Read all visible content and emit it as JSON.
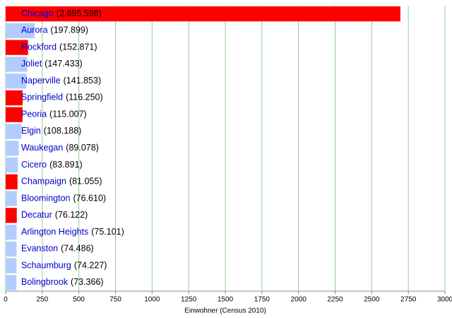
{
  "chart_data": {
    "type": "bar",
    "orientation": "horizontal",
    "categories": [
      "Chicago",
      "Aurora",
      "Rockford",
      "Joliet",
      "Naperville",
      "Springfield",
      "Peoria",
      "Elgin",
      "Waukegan",
      "Cicero",
      "Champaign",
      "Bloomington",
      "Decatur",
      "Arlington Heights",
      "Evanston",
      "Schaumburg",
      "Bolingbrook"
    ],
    "values": [
      2695.598,
      197.899,
      152.871,
      147.433,
      141.853,
      116.25,
      115.007,
      108.188,
      89.078,
      83.891,
      81.055,
      76.61,
      76.122,
      75.101,
      74.486,
      74.227,
      73.366
    ],
    "value_labels": [
      "(2.695.598)",
      "(197.899)",
      "(152.871)",
      "(147.433)",
      "(141.853)",
      "(116.250)",
      "(115.007)",
      "(108.188)",
      "(89.078)",
      "(83.891)",
      "(81.055)",
      "(76.610)",
      "(76.122)",
      "(75.101)",
      "(74.486)",
      "(74.227)",
      "(73.366)"
    ],
    "colors": [
      "#ff0000",
      "#b3ccff",
      "#ff0000",
      "#b3ccff",
      "#b3ccff",
      "#ff0000",
      "#ff0000",
      "#b3ccff",
      "#b3ccff",
      "#b3ccff",
      "#ff0000",
      "#b3ccff",
      "#ff0000",
      "#b3ccff",
      "#b3ccff",
      "#b3ccff",
      "#b3ccff"
    ],
    "x_label": "Einwohner (Census 2010)",
    "xlim": [
      0,
      3000
    ],
    "xticks": [
      0,
      250,
      500,
      750,
      1000,
      1250,
      1500,
      1750,
      2000,
      2250,
      2500,
      2750,
      3000
    ],
    "grid": true,
    "grid_color": "#8fcf8f"
  }
}
